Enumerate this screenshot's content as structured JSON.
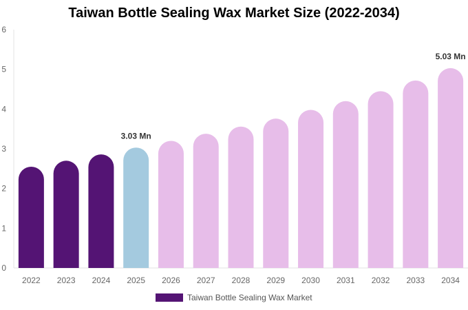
{
  "chart_data": {
    "type": "bar",
    "title": "Taiwan Bottle Sealing Wax Market Size (2022-2034)",
    "xlabel": "",
    "ylabel": "",
    "categories": [
      "2022",
      "2023",
      "2024",
      "2025",
      "2026",
      "2027",
      "2028",
      "2029",
      "2030",
      "2031",
      "2032",
      "2033",
      "2034"
    ],
    "series": [
      {
        "name": "Taiwan Bottle Sealing Wax Market",
        "values": [
          2.55,
          2.7,
          2.86,
          3.03,
          3.2,
          3.38,
          3.56,
          3.76,
          3.98,
          4.2,
          4.45,
          4.72,
          5.03
        ]
      }
    ],
    "ylim": [
      0,
      6
    ],
    "yticks": [
      "0",
      "1",
      "2",
      "3",
      "4",
      "5",
      "6"
    ],
    "data_labels": [
      {
        "category": "2025",
        "text": "3.03 Mn"
      },
      {
        "category": "2034",
        "text": "5.03 Mn"
      }
    ],
    "bar_colors": {
      "historical": "#541474",
      "current": "#a4cadf",
      "forecast": "#e7bde9"
    },
    "historical_categories": [
      "2022",
      "2023",
      "2024"
    ],
    "current_category": "2025",
    "grid": false,
    "legend_position": "bottom",
    "legend_color": "#541474"
  }
}
